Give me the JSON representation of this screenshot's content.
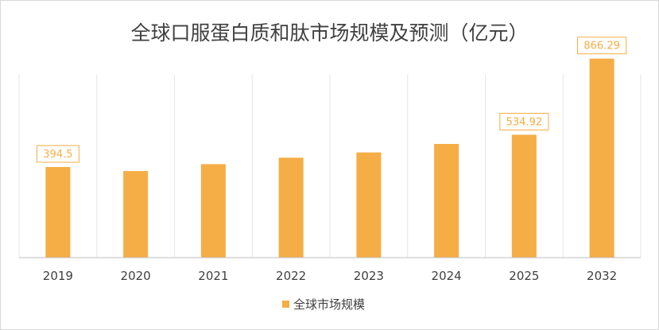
{
  "chart_data": {
    "type": "bar",
    "title": "全球口服蛋白质和肽市场规模及预测（亿元）",
    "categories": [
      "2019",
      "2020",
      "2021",
      "2022",
      "2023",
      "2024",
      "2025",
      "2032"
    ],
    "series": [
      {
        "name": "全球市场规模",
        "values": [
          394.5,
          377,
          407,
          435,
          458,
          495,
          534.92,
          866.29
        ],
        "data_labels": [
          "394.5",
          "",
          "",
          "",
          "",
          "",
          "534.92",
          "866.29"
        ],
        "color": "#f5ad45"
      }
    ],
    "ylim": [
      0,
      900
    ],
    "grid": "vertical",
    "legend_position": "bottom"
  }
}
